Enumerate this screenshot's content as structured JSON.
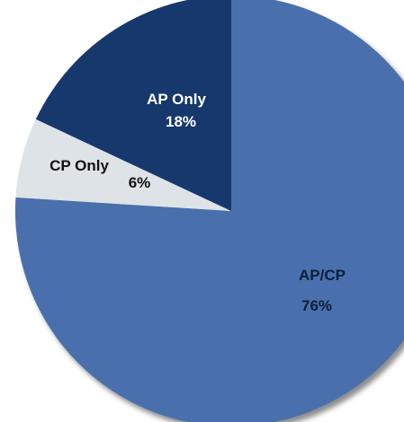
{
  "chart_data": {
    "type": "pie",
    "start_angle_deg": 0,
    "direction": "clockwise",
    "slices": [
      {
        "label": "AP/CP",
        "value": 76,
        "value_label": "76%",
        "color": "#4a6fad",
        "label_color": "#0d1e3a"
      },
      {
        "label": "CP Only",
        "value": 6,
        "value_label": "6%",
        "color": "#dde3e7",
        "label_color": "#111111"
      },
      {
        "label": "AP Only",
        "value": 18,
        "value_label": "18%",
        "color": "#17386c",
        "label_color": "#ffffff"
      }
    ]
  }
}
